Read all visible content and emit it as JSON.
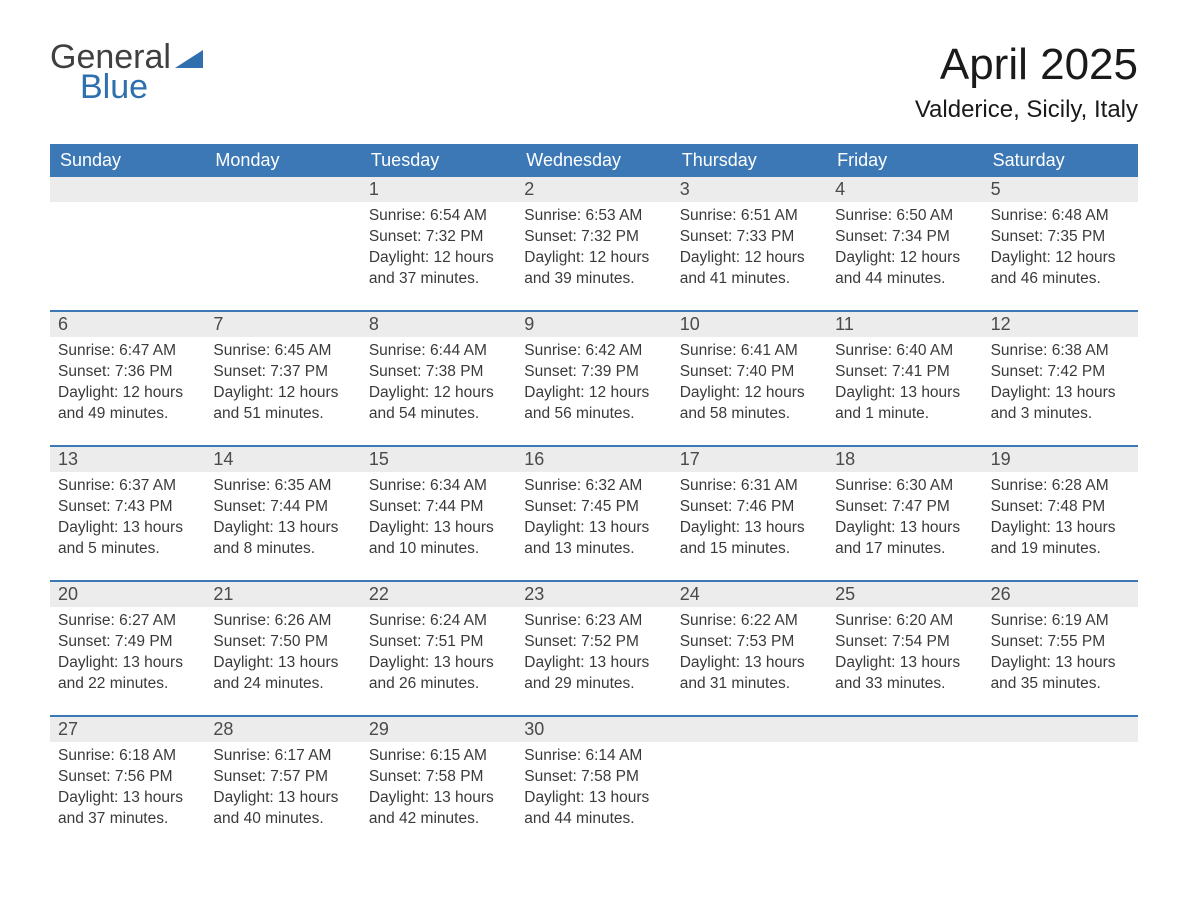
{
  "logo": {
    "word1": "General",
    "word2": "Blue"
  },
  "colors": {
    "header_bg": "#3b78b5",
    "header_text": "#ffffff",
    "daynum_bg": "#ececec",
    "sep": "#3b78b5",
    "logo_gray": "#404040",
    "logo_blue": "#2f6fad",
    "body_text": "#3a3a3a"
  },
  "fonts": {
    "title_size_pt": 33,
    "location_size_pt": 18,
    "dayhead_size_pt": 14,
    "body_size_pt": 12
  },
  "title": "April 2025",
  "location": "Valderice, Sicily, Italy",
  "day_headers": [
    "Sunday",
    "Monday",
    "Tuesday",
    "Wednesday",
    "Thursday",
    "Friday",
    "Saturday"
  ],
  "weeks": [
    [
      null,
      null,
      {
        "n": "1",
        "sr": "6:54 AM",
        "ss": "7:32 PM",
        "dl": "12 hours and 37 minutes."
      },
      {
        "n": "2",
        "sr": "6:53 AM",
        "ss": "7:32 PM",
        "dl": "12 hours and 39 minutes."
      },
      {
        "n": "3",
        "sr": "6:51 AM",
        "ss": "7:33 PM",
        "dl": "12 hours and 41 minutes."
      },
      {
        "n": "4",
        "sr": "6:50 AM",
        "ss": "7:34 PM",
        "dl": "12 hours and 44 minutes."
      },
      {
        "n": "5",
        "sr": "6:48 AM",
        "ss": "7:35 PM",
        "dl": "12 hours and 46 minutes."
      }
    ],
    [
      {
        "n": "6",
        "sr": "6:47 AM",
        "ss": "7:36 PM",
        "dl": "12 hours and 49 minutes."
      },
      {
        "n": "7",
        "sr": "6:45 AM",
        "ss": "7:37 PM",
        "dl": "12 hours and 51 minutes."
      },
      {
        "n": "8",
        "sr": "6:44 AM",
        "ss": "7:38 PM",
        "dl": "12 hours and 54 minutes."
      },
      {
        "n": "9",
        "sr": "6:42 AM",
        "ss": "7:39 PM",
        "dl": "12 hours and 56 minutes."
      },
      {
        "n": "10",
        "sr": "6:41 AM",
        "ss": "7:40 PM",
        "dl": "12 hours and 58 minutes."
      },
      {
        "n": "11",
        "sr": "6:40 AM",
        "ss": "7:41 PM",
        "dl": "13 hours and 1 minute."
      },
      {
        "n": "12",
        "sr": "6:38 AM",
        "ss": "7:42 PM",
        "dl": "13 hours and 3 minutes."
      }
    ],
    [
      {
        "n": "13",
        "sr": "6:37 AM",
        "ss": "7:43 PM",
        "dl": "13 hours and 5 minutes."
      },
      {
        "n": "14",
        "sr": "6:35 AM",
        "ss": "7:44 PM",
        "dl": "13 hours and 8 minutes."
      },
      {
        "n": "15",
        "sr": "6:34 AM",
        "ss": "7:44 PM",
        "dl": "13 hours and 10 minutes."
      },
      {
        "n": "16",
        "sr": "6:32 AM",
        "ss": "7:45 PM",
        "dl": "13 hours and 13 minutes."
      },
      {
        "n": "17",
        "sr": "6:31 AM",
        "ss": "7:46 PM",
        "dl": "13 hours and 15 minutes."
      },
      {
        "n": "18",
        "sr": "6:30 AM",
        "ss": "7:47 PM",
        "dl": "13 hours and 17 minutes."
      },
      {
        "n": "19",
        "sr": "6:28 AM",
        "ss": "7:48 PM",
        "dl": "13 hours and 19 minutes."
      }
    ],
    [
      {
        "n": "20",
        "sr": "6:27 AM",
        "ss": "7:49 PM",
        "dl": "13 hours and 22 minutes."
      },
      {
        "n": "21",
        "sr": "6:26 AM",
        "ss": "7:50 PM",
        "dl": "13 hours and 24 minutes."
      },
      {
        "n": "22",
        "sr": "6:24 AM",
        "ss": "7:51 PM",
        "dl": "13 hours and 26 minutes."
      },
      {
        "n": "23",
        "sr": "6:23 AM",
        "ss": "7:52 PM",
        "dl": "13 hours and 29 minutes."
      },
      {
        "n": "24",
        "sr": "6:22 AM",
        "ss": "7:53 PM",
        "dl": "13 hours and 31 minutes."
      },
      {
        "n": "25",
        "sr": "6:20 AM",
        "ss": "7:54 PM",
        "dl": "13 hours and 33 minutes."
      },
      {
        "n": "26",
        "sr": "6:19 AM",
        "ss": "7:55 PM",
        "dl": "13 hours and 35 minutes."
      }
    ],
    [
      {
        "n": "27",
        "sr": "6:18 AM",
        "ss": "7:56 PM",
        "dl": "13 hours and 37 minutes."
      },
      {
        "n": "28",
        "sr": "6:17 AM",
        "ss": "7:57 PM",
        "dl": "13 hours and 40 minutes."
      },
      {
        "n": "29",
        "sr": "6:15 AM",
        "ss": "7:58 PM",
        "dl": "13 hours and 42 minutes."
      },
      {
        "n": "30",
        "sr": "6:14 AM",
        "ss": "7:58 PM",
        "dl": "13 hours and 44 minutes."
      },
      null,
      null,
      null
    ]
  ],
  "labels": {
    "sunrise_prefix": "Sunrise: ",
    "sunset_prefix": "Sunset: ",
    "daylight_prefix": "Daylight: "
  }
}
